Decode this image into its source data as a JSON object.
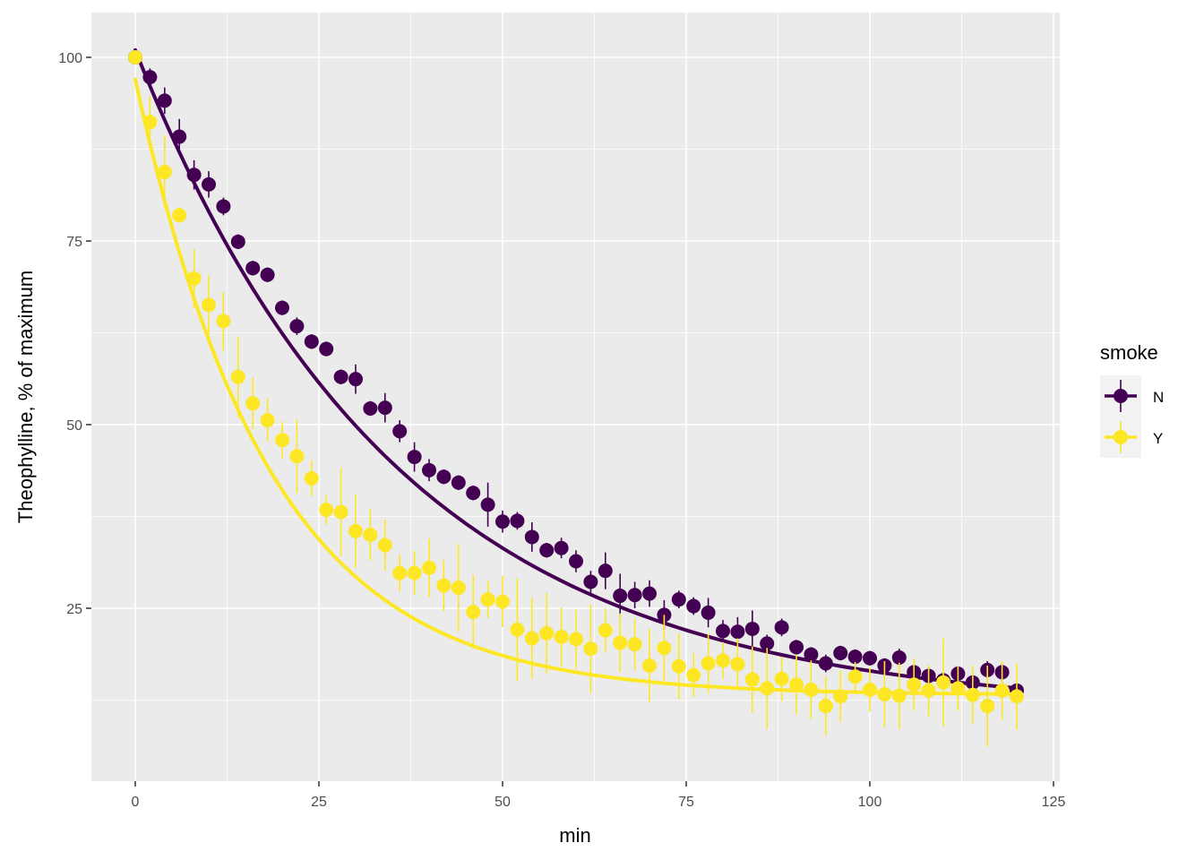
{
  "chart_data": {
    "type": "scatter",
    "title": "",
    "xlabel": "min",
    "ylabel": "Theophylline, % of maximum",
    "xlim": [
      -6,
      126
    ],
    "ylim": [
      0,
      106
    ],
    "x_ticks": [
      0,
      25,
      50,
      75,
      100,
      125
    ],
    "y_ticks": [
      25,
      50,
      75,
      100
    ],
    "grid": true,
    "legend": {
      "title": "smoke",
      "position": "right",
      "entries": [
        "N",
        "Y"
      ]
    },
    "x": [
      0,
      2,
      4,
      6,
      8,
      10,
      12,
      14,
      16,
      18,
      20,
      22,
      24,
      26,
      28,
      30,
      32,
      34,
      36,
      38,
      40,
      42,
      44,
      46,
      48,
      50,
      52,
      54,
      56,
      58,
      60,
      62,
      64,
      66,
      68,
      70,
      72,
      74,
      76,
      78,
      80,
      82,
      84,
      86,
      88,
      90,
      92,
      94,
      96,
      98,
      100,
      102,
      104,
      106,
      108,
      110,
      112,
      114,
      116,
      118,
      120
    ],
    "series": [
      {
        "name": "N",
        "color": "#440154",
        "values": [
          100,
          97.3,
          94.1,
          89.2,
          84.0,
          82.7,
          79.7,
          74.9,
          71.3,
          70.4,
          65.9,
          63.4,
          61.3,
          60.3,
          56.5,
          56.2,
          52.2,
          52.3,
          49.1,
          45.6,
          43.8,
          42.9,
          42.1,
          40.7,
          39.1,
          36.8,
          36.9,
          34.7,
          32.9,
          33.2,
          31.4,
          28.6,
          30.1,
          26.7,
          26.8,
          27.0,
          24.1,
          26.2,
          25.3,
          24.4,
          21.9,
          21.8,
          22.2,
          20.2,
          22.4,
          19.7,
          18.7,
          17.5,
          18.9,
          18.4,
          18.2,
          17.2,
          18.3,
          16.3,
          15.8,
          15.2,
          16.1,
          14.9,
          16.6,
          16.3,
          13.8
        ],
        "error": [
          0,
          1.2,
          1.8,
          2.4,
          2.0,
          1.8,
          1.2,
          1.0,
          1.0,
          1.0,
          1.0,
          1.2,
          1.0,
          1.0,
          1.0,
          2.0,
          1.0,
          2.0,
          1.5,
          2.0,
          1.5,
          1.0,
          1.0,
          1.0,
          3.0,
          1.5,
          1.2,
          2.0,
          1.0,
          1.4,
          1.5,
          1.5,
          2.5,
          3.0,
          1.8,
          1.8,
          2.0,
          1.2,
          1.2,
          2.0,
          1.5,
          2.0,
          2.5,
          1.2,
          1.2,
          1.0,
          1.0,
          1.2,
          1.0,
          1.0,
          1.0,
          1.0,
          1.2,
          1.0,
          1.0,
          1.0,
          1.0,
          1.0,
          1.2,
          1.2,
          1.0
        ],
        "fit_curve": {
          "start": 101,
          "end": 14.0,
          "plateau": 11.0,
          "rate": 0.028
        }
      },
      {
        "name": "Y",
        "color": "#FDE725",
        "values": [
          100,
          91.2,
          84.4,
          78.5,
          69.9,
          66.3,
          64.1,
          56.5,
          52.9,
          50.6,
          47.9,
          45.7,
          42.7,
          38.4,
          38.1,
          35.5,
          35.0,
          33.6,
          29.8,
          29.8,
          30.5,
          28.1,
          27.8,
          24.5,
          26.2,
          25.9,
          22.1,
          20.9,
          21.6,
          21.1,
          20.8,
          19.5,
          22.0,
          20.3,
          20.1,
          17.2,
          19.6,
          17.1,
          15.9,
          17.5,
          17.9,
          17.4,
          15.3,
          14.1,
          15.4,
          14.6,
          13.9,
          11.7,
          13.0,
          15.7,
          13.9,
          13.3,
          13.1,
          14.6,
          13.8,
          14.9,
          14.1,
          13.2,
          11.7,
          13.8,
          13.0
        ],
        "error": [
          0,
          3.5,
          5.0,
          1.0,
          4.0,
          4.0,
          4.0,
          5.5,
          3.5,
          3.0,
          2.5,
          5.0,
          2.5,
          2.0,
          6.0,
          5.0,
          3.5,
          3.5,
          2.5,
          3.0,
          4.0,
          3.5,
          6.0,
          5.0,
          2.5,
          3.5,
          7.0,
          5.5,
          5.5,
          4.0,
          4.0,
          6.0,
          3.0,
          4.0,
          3.5,
          5.0,
          4.5,
          4.5,
          3.0,
          4.0,
          2.5,
          3.5,
          4.5,
          5.5,
          3.0,
          4.0,
          4.0,
          4.0,
          3.5,
          2.0,
          3.0,
          4.5,
          4.5,
          3.5,
          3.5,
          6.0,
          3.0,
          4.0,
          5.5,
          4.0,
          4.5
        ],
        "fit_curve": {
          "start": 97,
          "end": 13.5,
          "plateau": 13.2,
          "rate": 0.055
        }
      }
    ]
  }
}
